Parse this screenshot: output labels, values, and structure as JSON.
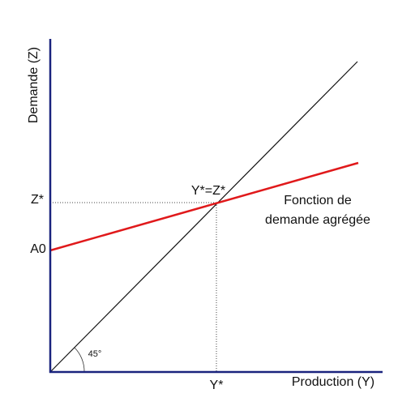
{
  "axes": {
    "y_label": "Demande (Z)",
    "x_label": "Production (Y)"
  },
  "labels": {
    "y_star": "Y*",
    "z_star": "Z*",
    "a0": "A0",
    "equilibrium": "Y*=Z*",
    "angle": "45°"
  },
  "curve_label": {
    "line1": "Fonction de",
    "line2": "demande agrégée"
  }
}
